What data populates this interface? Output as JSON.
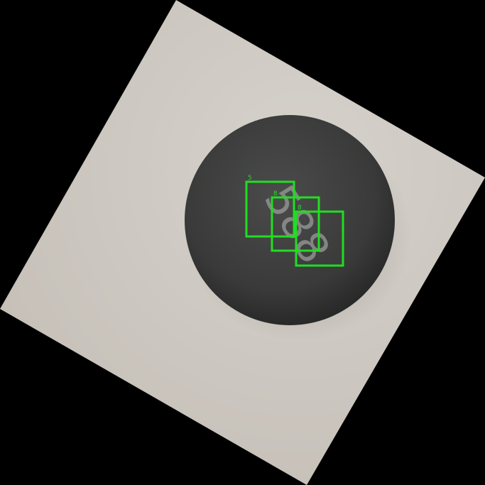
{
  "image": {
    "background_color": "#000000",
    "paper_color": "#ccc8c2",
    "ball_color": "#3a3b3a"
  },
  "ball_text": "588",
  "detections": [
    {
      "label": "5",
      "color": "#22dd22"
    },
    {
      "label": "8",
      "color": "#22dd22"
    },
    {
      "label": "8",
      "color": "#22dd22"
    }
  ]
}
